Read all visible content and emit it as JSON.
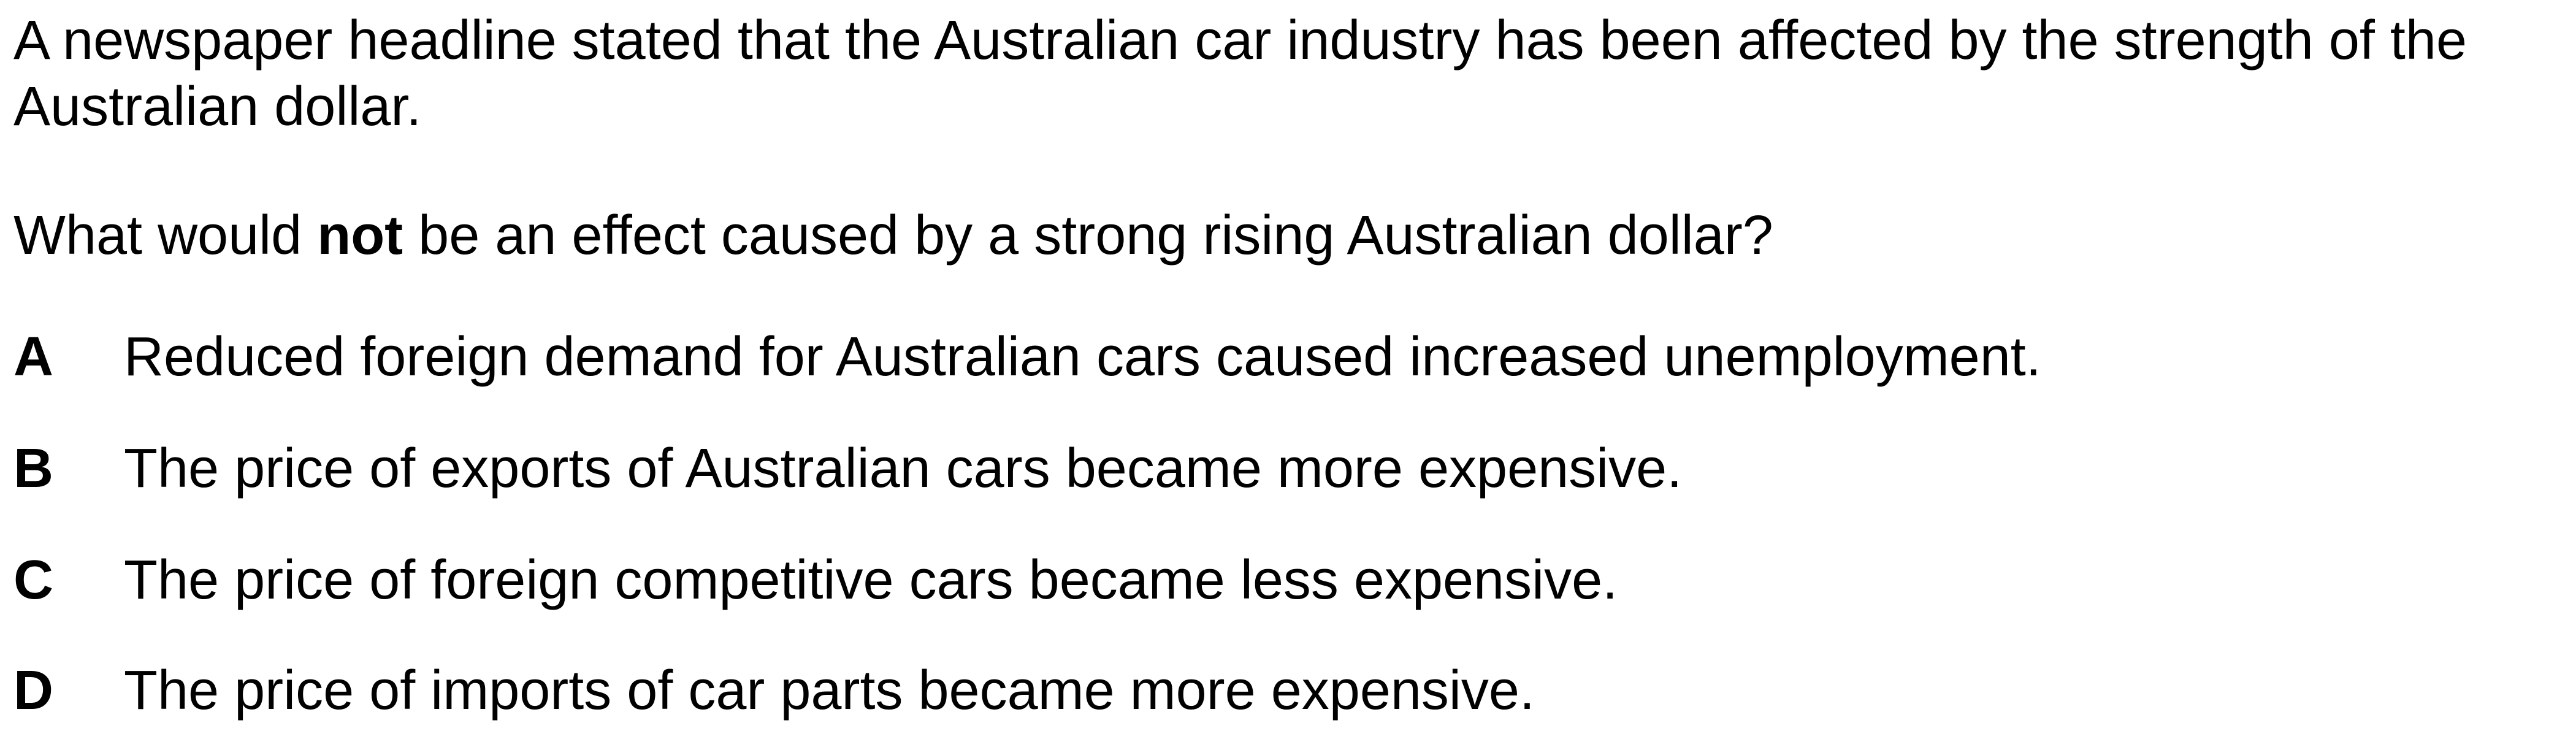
{
  "question": {
    "stem": "A newspaper headline stated that the Australian car industry has been affected by the strength of the Australian dollar.",
    "prompt_before": "What would ",
    "prompt_emphasis": "not",
    "prompt_after": " be an effect caused by a strong rising Australian dollar?"
  },
  "options": [
    {
      "letter": "A",
      "text": "Reduced foreign demand for Australian cars caused increased unemployment."
    },
    {
      "letter": "B",
      "text": "The price of exports of Australian cars became more expensive."
    },
    {
      "letter": "C",
      "text": "The price of foreign competitive cars became less expensive."
    },
    {
      "letter": "D",
      "text": "The price of imports of car parts became more expensive."
    }
  ]
}
